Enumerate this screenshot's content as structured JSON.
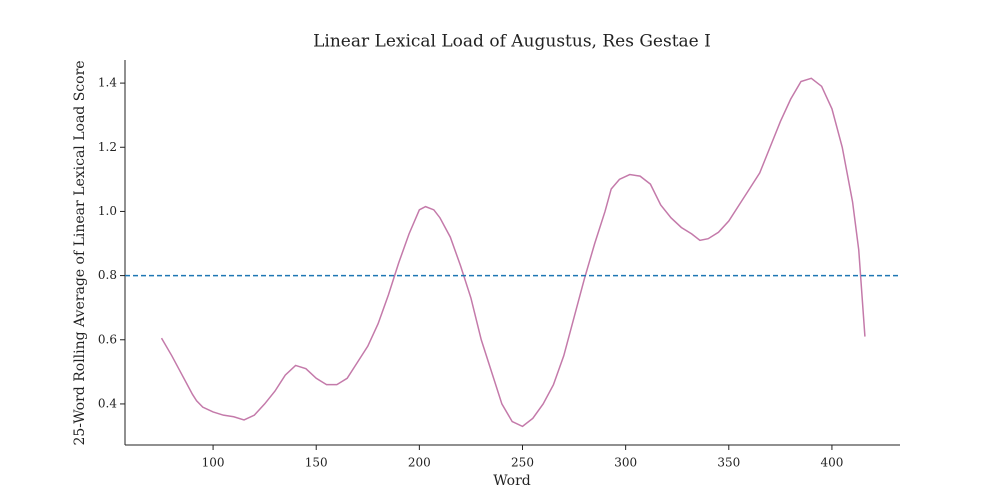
{
  "chart_data": {
    "type": "line",
    "title": "Linear Lexical Load of Augustus, Res Gestae I",
    "x_label": "Word",
    "y_label": "25-Word Rolling Average of Linear Lexical Load Score",
    "x": [
      75,
      80,
      85,
      90,
      92,
      95,
      100,
      105,
      110,
      115,
      120,
      125,
      130,
      135,
      140,
      145,
      150,
      155,
      160,
      165,
      170,
      175,
      180,
      185,
      190,
      195,
      200,
      203,
      207,
      210,
      215,
      220,
      225,
      230,
      235,
      240,
      245,
      250,
      255,
      260,
      265,
      270,
      275,
      280,
      285,
      290,
      293,
      297,
      302,
      307,
      312,
      317,
      322,
      327,
      332,
      336,
      340,
      345,
      350,
      355,
      360,
      365,
      370,
      375,
      380,
      385,
      390,
      395,
      400,
      405,
      410,
      413,
      416
    ],
    "series": [
      {
        "color": "#c47aaa",
        "values": [
          0.605,
          0.55,
          0.49,
          0.43,
          0.41,
          0.39,
          0.375,
          0.365,
          0.36,
          0.35,
          0.365,
          0.4,
          0.44,
          0.49,
          0.52,
          0.51,
          0.48,
          0.46,
          0.46,
          0.48,
          0.53,
          0.58,
          0.65,
          0.74,
          0.84,
          0.93,
          1.005,
          1.015,
          1.005,
          0.98,
          0.92,
          0.83,
          0.73,
          0.6,
          0.5,
          0.4,
          0.345,
          0.33,
          0.355,
          0.4,
          0.46,
          0.55,
          0.67,
          0.79,
          0.9,
          1.0,
          1.07,
          1.1,
          1.115,
          1.11,
          1.085,
          1.02,
          0.98,
          0.95,
          0.93,
          0.91,
          0.915,
          0.935,
          0.97,
          1.02,
          1.07,
          1.12,
          1.2,
          1.28,
          1.35,
          1.405,
          1.415,
          1.39,
          1.32,
          1.2,
          1.03,
          0.88,
          0.61
        ]
      }
    ],
    "reference_line": {
      "value": 0.8,
      "color": "#1f77b4",
      "style": "dashed"
    },
    "xlim": [
      57.3,
      433
    ],
    "ylim": [
      0.272,
      1.472
    ],
    "xticks": [
      100,
      150,
      200,
      250,
      300,
      350,
      400
    ],
    "yticks": [
      0.4,
      0.6,
      0.8,
      {
        "value": 1,
        "label": "1.0"
      },
      1.2,
      1.4
    ]
  }
}
